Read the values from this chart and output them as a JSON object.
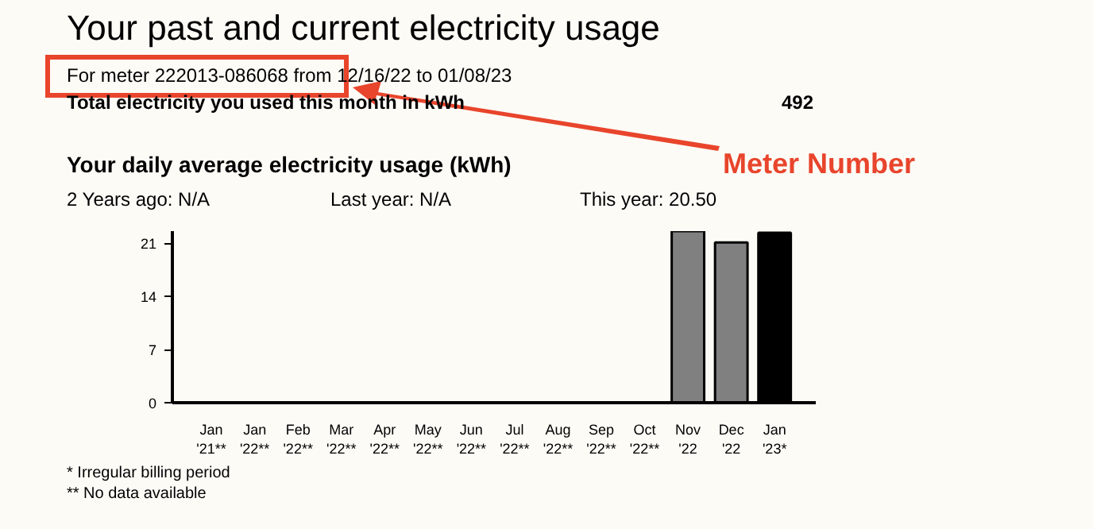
{
  "chart_data": {
    "type": "bar",
    "title": "Your past and current electricity usage",
    "subtitle": "For meter 222013-086068 from 12/16/22 to 01/08/23",
    "categories": [
      "Jan\n'21**",
      "Jan\n'22**",
      "Feb\n'22**",
      "Mar\n'22**",
      "Apr\n'22**",
      "May\n'22**",
      "Jun\n'22**",
      "Jul\n'22**",
      "Aug\n'22**",
      "Sep\n'22**",
      "Oct\n'22**",
      "Nov\n'22",
      "Dec\n'22",
      "Jan\n'23*"
    ],
    "values": [
      null,
      null,
      null,
      null,
      null,
      null,
      null,
      null,
      null,
      null,
      null,
      22.6,
      21.1,
      22.4
    ],
    "colors": [
      "#808080",
      "#808080",
      "#808080",
      "#808080",
      "#808080",
      "#808080",
      "#808080",
      "#808080",
      "#808080",
      "#808080",
      "#808080",
      "#808080",
      "#808080",
      "#000000"
    ],
    "ylim": [
      0,
      22.6
    ],
    "yticks": [
      0,
      7,
      14,
      21
    ],
    "grid": false,
    "annotations": [
      "Total electricity you used this month in kWh",
      "492",
      "Your daily average electricity usage (kWh)",
      "2 Years ago: N/A",
      "Last year: N/A",
      "This year: 20.50",
      "* Irregular billing period",
      "** No data available",
      "Meter Number"
    ]
  }
}
